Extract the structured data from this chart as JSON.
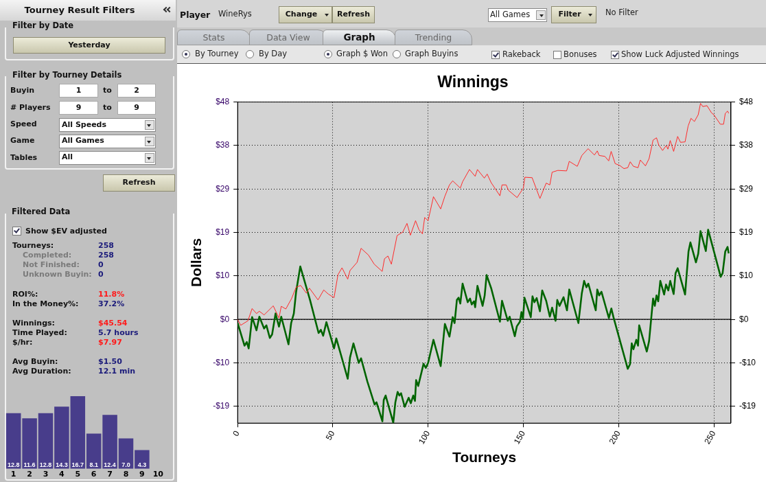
{
  "chart_data": [
    {
      "type": "line",
      "title": "Winnings",
      "xlabel": "Tourneys",
      "ylabel": "Dollars",
      "xlim": [
        0,
        259
      ],
      "xticks": [
        0,
        50,
        100,
        150,
        200,
        250
      ],
      "ylim": [
        -22.9,
        48
      ],
      "yticks": [
        {
          "value": -19.2,
          "label": "-$19"
        },
        {
          "value": -9.6,
          "label": "-$10"
        },
        {
          "value": 0,
          "label": "$0"
        },
        {
          "value": 9.6,
          "label": "$10"
        },
        {
          "value": 19.2,
          "label": "$19"
        },
        {
          "value": 28.8,
          "label": "$29"
        },
        {
          "value": 38.4,
          "label": "$38"
        },
        {
          "value": 48,
          "label": "$48"
        }
      ],
      "y2lim": [
        -22.9,
        48
      ],
      "y2ticks": [
        {
          "value": -19.2,
          "label": "-$19"
        },
        {
          "value": -9.6,
          "label": "-$10"
        },
        {
          "value": 0,
          "label": "$0"
        },
        {
          "value": 9.6,
          "label": "$10"
        },
        {
          "value": 19.2,
          "label": "$19"
        },
        {
          "value": 28.8,
          "label": "$29"
        },
        {
          "value": 38.4,
          "label": "$38"
        },
        {
          "value": 48,
          "label": "$48"
        }
      ],
      "grid": true,
      "legend": false,
      "marker": "none",
      "line_style": "solid",
      "ref_lines": [
        {
          "axis": "y",
          "value": 0,
          "color": "#000000",
          "line_style": "solid"
        }
      ],
      "series": [
        {
          "color": "#ff2a2a",
          "x": [
            0,
            1.6,
            5.4,
            7.6,
            9.9,
            11.4,
            13.9,
            18.7,
            21.7,
            22.9,
            25.3,
            28.3,
            30.7,
            33.1,
            36.1,
            37.7,
            42.2,
            45.2,
            47.6,
            50.6,
            52.7,
            54.8,
            57.8,
            59,
            62.7,
            64.8,
            68.7,
            71.7,
            75.9,
            77.1,
            78.9,
            80.7,
            83.7,
            86.7,
            88.9,
            90.7,
            93.4,
            95.2,
            97,
            98.2,
            100,
            102.8,
            106.6,
            108.8,
            111.2,
            112.9,
            116.9,
            118.1,
            121.7,
            124.7,
            125.9,
            129.5,
            131,
            133.1,
            137.7,
            138.8,
            141,
            142.2,
            146.7,
            150,
            150.8,
            154.6,
            158.7,
            162,
            163.9,
            165.1,
            168.1,
            172.7,
            174.1,
            178.3,
            180.7,
            184,
            187.3,
            188.8,
            189.8,
            192.8,
            194.8,
            196.1,
            198.2,
            200.6,
            202.8,
            204.8,
            206.1,
            207.8,
            210.2,
            211.4,
            214.1,
            216,
            218.1,
            219.9,
            221.1,
            223.1,
            225,
            225.9,
            227.1,
            228.9,
            231,
            232.5,
            234.9,
            236.5,
            238,
            239.8,
            241.8,
            243,
            244.2,
            246.4,
            248.8,
            250,
            253.4,
            255.1,
            256,
            257.2,
            257.8
          ],
          "values": [
            0,
            -1.3,
            -0.3,
            2.4,
            1.3,
            1.8,
            1,
            3,
            0.3,
            2.9,
            2.3,
            4.6,
            7.1,
            7.5,
            5.8,
            6.9,
            4.3,
            6.5,
            5.6,
            4.8,
            9.9,
            11.4,
            8.9,
            10.8,
            12.6,
            15.7,
            14.2,
            12.2,
            10.6,
            13.4,
            14,
            12.2,
            18.5,
            19.3,
            21.2,
            18.6,
            21.8,
            19.8,
            18.9,
            22.5,
            21.8,
            27.1,
            24.4,
            27.2,
            29.7,
            30.6,
            29,
            30.4,
            33.1,
            31.6,
            33.1,
            31.2,
            32.1,
            30.2,
            27.3,
            29.7,
            29.7,
            28.5,
            26.9,
            29,
            31.4,
            31.3,
            26.7,
            30.1,
            29.7,
            32.5,
            32.9,
            32.8,
            34.9,
            33.8,
            36.2,
            37.7,
            36.3,
            37.2,
            36.2,
            36,
            35,
            37.1,
            34.4,
            34,
            33.3,
            33.5,
            34.8,
            33.8,
            33.5,
            35.2,
            33.9,
            35.5,
            39.6,
            40.1,
            38.5,
            37.3,
            38.4,
            37.6,
            39.5,
            37.1,
            40.4,
            39.1,
            39.2,
            42.7,
            44.4,
            43.7,
            45.2,
            47.7,
            47,
            47.2,
            45.6,
            45.2,
            43.1,
            43.1,
            45.5,
            46,
            45.5
          ]
        },
        {
          "color": "#006400",
          "x": [
            0,
            3.6,
            4.8,
            5.8,
            7.6,
            9.9,
            11.4,
            13.9,
            15.1,
            16.9,
            18.1,
            19.9,
            21.7,
            22.9,
            26.7,
            28.1,
            29.5,
            30.7,
            32.9,
            38,
            42.5,
            43.7,
            44.9,
            46.6,
            50.6,
            51.8,
            57.8,
            59,
            60.8,
            63.6,
            64.8,
            68.1,
            71.9,
            72.9,
            76,
            76.7,
            77.7,
            81.7,
            82.8,
            84,
            84.9,
            85.8,
            87.7,
            89.8,
            90.9,
            92.2,
            93.1,
            93.7,
            94.8,
            97.6,
            98.8,
            100,
            102.8,
            106.6,
            108.8,
            111.2,
            112.9,
            113.9,
            115.1,
            116,
            116.9,
            118.1,
            120.8,
            122,
            122.9,
            124.1,
            124.7,
            125.9,
            128.6,
            129.7,
            130.7,
            133.1,
            137.7,
            138.8,
            141.8,
            142.8,
            145.5,
            146.6,
            148.2,
            149,
            149.8,
            150.6,
            153.9,
            154.8,
            155.8,
            157,
            158.7,
            159.9,
            162,
            163.9,
            165.1,
            166.9,
            167.8,
            169,
            171.1,
            172.9,
            174.1,
            178.9,
            180.7,
            181.9,
            183.1,
            184.1,
            188,
            188.8,
            189.8,
            191,
            194.9,
            196.2,
            197.3,
            204.8,
            206,
            206.9,
            207.8,
            209.3,
            210.2,
            210.8,
            214.8,
            216,
            218.1,
            219,
            219.9,
            220.8,
            221.9,
            223.9,
            224.9,
            226.1,
            227.1,
            228.9,
            229.9,
            231,
            233.1,
            234.9,
            236.7,
            237.7,
            240.6,
            241.8,
            243,
            245.8,
            247,
            250,
            253.6,
            254.6,
            256,
            257.2,
            257.8
          ],
          "values": [
            -0.8,
            -5.8,
            -5,
            -6.4,
            0.5,
            -2.4,
            0.6,
            -2,
            -1.3,
            -4.1,
            -3.3,
            1.3,
            -1.6,
            0.6,
            -5.5,
            -0.8,
            1.3,
            6.1,
            11.7,
            4.3,
            -3,
            -2.3,
            -3.6,
            -0.6,
            -6.4,
            -4.2,
            -13.1,
            -8.4,
            -5.3,
            -9.6,
            -8.6,
            -13.7,
            -18.8,
            -18.3,
            -22.5,
            -17.8,
            -16.8,
            -22.8,
            -18.3,
            -16,
            -16.8,
            -16.3,
            -19.3,
            -17.3,
            -18.5,
            -16.8,
            -18,
            -13.4,
            -14.7,
            -9.8,
            -10.7,
            -9.6,
            -4.5,
            -10.3,
            -1,
            -3.8,
            0.5,
            -0.8,
            4.3,
            4.8,
            3.5,
            7.9,
            3.8,
            4.6,
            3.3,
            4,
            2.7,
            7.4,
            3,
            5.3,
            9.8,
            6.9,
            -0.5,
            4.1,
            -0.3,
            0.6,
            -3.7,
            -1.5,
            -0.5,
            1.6,
            0.1,
            4.8,
            0.5,
            5.1,
            3.8,
            4.7,
            1.8,
            6.4,
            4.1,
            0.6,
            2.6,
            -0.3,
            4.3,
            3,
            4.9,
            2,
            6.6,
            -0.8,
            5.8,
            8.5,
            7.1,
            7.9,
            2,
            6.6,
            5.3,
            6.1,
            0.3,
            2.4,
            0.5,
            -10.9,
            -9.9,
            -5.3,
            -6.6,
            -4.5,
            -5.8,
            -1.3,
            -7.1,
            -4.8,
            4.6,
            3,
            5.3,
            4,
            8.5,
            5.5,
            7.7,
            6.4,
            8.5,
            5.6,
            10.2,
            11.3,
            8.2,
            5.5,
            15,
            17,
            12.6,
            14.5,
            19.5,
            15.1,
            19.8,
            15.1,
            9.4,
            10.2,
            15,
            16,
            14.6
          ]
        }
      ]
    },
    {
      "type": "bar",
      "categories": [
        "1",
        "2",
        "3",
        "4",
        "5",
        "6",
        "7",
        "8",
        "9",
        "10"
      ],
      "values": [
        12.8,
        11.6,
        12.8,
        14.3,
        16.7,
        8.1,
        12.4,
        7,
        4.3,
        null
      ],
      "value_labels": [
        "12.8",
        "11.6",
        "12.8",
        "14.3",
        "16.7",
        "8.1",
        "12.4",
        "7.0",
        "4.3",
        null
      ],
      "color": "#483d8b",
      "tick_labels": "x",
      "grid": false,
      "legend": false
    },
    {
      "type": "other",
      "annotations": [
        "Tourney Result Filters",
        "Filter by Date",
        "Yesterday",
        "Filter by Tourney Details",
        "Buyin",
        "1",
        "to",
        "2",
        "# Players",
        "9",
        "to",
        "9",
        "Speed",
        "All Speeds",
        "Game",
        "All Games",
        "Tables",
        "All",
        "Refresh",
        "Filtered Data",
        "Show $EV adjusted",
        "Tourneys:",
        "258",
        "Completed:",
        "258",
        "Not Finished:",
        "0",
        "Unknown Buyin:",
        "0",
        "ROI%:",
        "11.8%",
        "In the Money%:",
        "37.2%",
        "Winnings:",
        "$45.54",
        "Time Played:",
        "5.7 hours",
        "$/hr:",
        "$7.97",
        "Avg Buyin:",
        "$1.50",
        "Avg Duration:",
        "12.1 min",
        "Player",
        "WineRys",
        "Change",
        "Refresh",
        "All Games",
        "Filter",
        "No Filter",
        "Stats",
        "Data View",
        "Graph",
        "Trending",
        "By Tourney",
        "By Day",
        "Graph $ Won",
        "Graph Buyins",
        "Rakeback",
        "Bonuses",
        "Show Luck Adjusted Winnings"
      ]
    }
  ]
}
